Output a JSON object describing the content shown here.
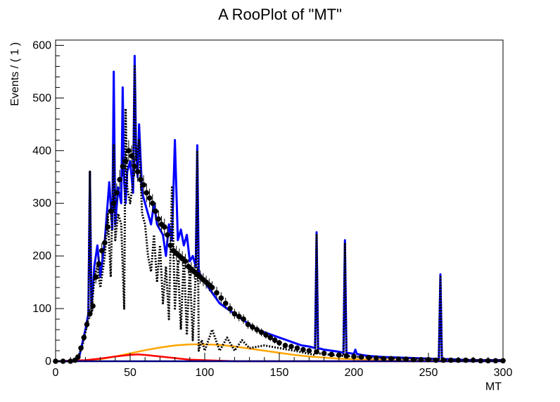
{
  "chart_data": {
    "type": "line",
    "title": "A RooPlot of \"MT\"",
    "xlabel": "MT",
    "ylabel": "Events / ( 1 )",
    "xlim": [
      0,
      300
    ],
    "ylim": [
      0,
      610
    ],
    "x_ticks": [
      0,
      50,
      100,
      150,
      200,
      250,
      300
    ],
    "y_ticks": [
      0,
      100,
      200,
      300,
      400,
      500,
      600
    ],
    "grid": false,
    "legend": "none",
    "data_points": {
      "x": [
        0,
        5,
        10,
        13,
        15,
        17,
        19,
        21,
        23,
        25,
        27,
        29,
        31,
        33,
        35,
        37,
        39,
        41,
        43,
        45,
        47,
        49,
        51,
        53,
        55,
        57,
        59,
        61,
        63,
        65,
        67,
        69,
        71,
        73,
        75,
        77,
        79,
        81,
        83,
        85,
        87,
        89,
        91,
        93,
        95,
        97,
        99,
        101,
        103,
        105,
        108,
        111,
        114,
        117,
        120,
        123,
        126,
        129,
        132,
        135,
        138,
        141,
        144,
        147,
        150,
        154,
        158,
        162,
        166,
        170,
        175,
        180,
        185,
        190,
        195,
        200,
        205,
        210,
        215,
        220,
        225,
        230,
        235,
        240,
        245,
        250,
        255,
        260,
        265,
        270,
        275,
        280,
        285,
        290,
        295,
        300
      ],
      "y": [
        0,
        0,
        0,
        2,
        8,
        25,
        45,
        70,
        90,
        105,
        160,
        185,
        210,
        225,
        255,
        285,
        300,
        320,
        345,
        370,
        380,
        400,
        390,
        370,
        360,
        345,
        335,
        320,
        310,
        300,
        285,
        270,
        260,
        255,
        240,
        220,
        210,
        205,
        200,
        195,
        190,
        180,
        175,
        170,
        165,
        160,
        155,
        150,
        145,
        140,
        130,
        120,
        110,
        100,
        90,
        85,
        80,
        70,
        65,
        60,
        55,
        50,
        45,
        40,
        35,
        30,
        28,
        25,
        22,
        20,
        18,
        15,
        13,
        12,
        10,
        9,
        8,
        7,
        6,
        5,
        5,
        4,
        4,
        3,
        3,
        3,
        2,
        2,
        2,
        2,
        2,
        2,
        1,
        1,
        1,
        1
      ]
    },
    "series": [
      {
        "color": "#0000ff",
        "x": [
          0,
          12,
          16,
          20,
          22,
          23,
          24,
          26,
          28,
          30,
          33,
          36,
          38,
          39,
          40,
          42,
          44,
          45,
          46,
          47,
          48,
          50,
          52,
          53,
          54,
          55,
          56,
          58,
          60,
          62,
          64,
          66,
          68,
          70,
          72,
          74,
          76,
          78,
          80,
          82,
          84,
          86,
          88,
          90,
          92,
          94,
          95,
          96,
          98,
          100,
          105,
          110,
          115,
          120,
          125,
          130,
          135,
          140,
          145,
          150,
          155,
          160,
          165,
          170,
          174,
          175,
          176,
          180,
          185,
          190,
          193,
          194,
          195,
          198,
          200,
          201,
          202,
          205,
          210,
          220,
          230,
          240,
          250,
          257,
          258,
          259,
          265,
          270,
          280,
          290,
          300
        ],
        "y": [
          0,
          0,
          10,
          60,
          90,
          360,
          100,
          180,
          220,
          160,
          230,
          340,
          250,
          550,
          260,
          330,
          300,
          520,
          340,
          300,
          360,
          380,
          320,
          580,
          390,
          350,
          450,
          320,
          300,
          280,
          260,
          300,
          260,
          250,
          240,
          200,
          260,
          230,
          420,
          230,
          250,
          220,
          240,
          190,
          200,
          180,
          410,
          170,
          160,
          150,
          130,
          110,
          100,
          90,
          80,
          70,
          60,
          55,
          50,
          45,
          40,
          35,
          30,
          28,
          25,
          245,
          25,
          22,
          20,
          18,
          16,
          230,
          16,
          15,
          14,
          22,
          14,
          12,
          10,
          8,
          7,
          6,
          5,
          4,
          165,
          4,
          4,
          3,
          2,
          2,
          2
        ]
      },
      {
        "color": "#ffa500",
        "x": [
          0,
          20,
          30,
          40,
          50,
          60,
          70,
          80,
          90,
          100,
          110,
          120,
          130,
          140,
          150,
          160,
          170,
          180,
          190,
          200,
          220,
          240,
          260,
          280,
          300
        ],
        "y": [
          0,
          1,
          4,
          9,
          15,
          21,
          26,
          30,
          32,
          32,
          31,
          28,
          24,
          20,
          16,
          12,
          9,
          7,
          5,
          4,
          2,
          1,
          1,
          0,
          0
        ]
      },
      {
        "color": "#ff0000",
        "x": [
          0,
          20,
          30,
          40,
          50,
          55,
          60,
          70,
          80,
          90,
          100,
          110,
          120,
          140,
          300
        ],
        "y": [
          0,
          2,
          5,
          9,
          12,
          13,
          12,
          9,
          6,
          3,
          2,
          1,
          0,
          0,
          0
        ]
      },
      {
        "color": "#000080",
        "x": [
          0,
          300
        ],
        "y": [
          0,
          0
        ]
      },
      {
        "color": "#000000",
        "x": [
          0,
          14,
          18,
          22,
          23,
          24,
          26,
          28,
          30,
          33,
          35,
          37,
          39,
          40,
          42,
          44,
          46,
          47,
          48,
          50,
          52,
          53,
          54,
          56,
          58,
          60,
          62,
          64,
          66,
          68,
          70,
          72,
          74,
          76,
          78,
          80,
          82,
          84,
          86,
          88,
          90,
          92,
          94,
          95,
          96,
          98,
          100,
          105,
          110,
          115,
          120,
          125,
          130,
          140,
          150,
          160,
          174,
          175,
          176,
          185,
          193,
          194,
          195,
          205,
          220,
          240,
          257,
          258,
          259,
          280,
          300
        ],
        "y": [
          0,
          0,
          30,
          80,
          360,
          90,
          160,
          180,
          140,
          200,
          280,
          160,
          410,
          230,
          280,
          260,
          100,
          480,
          330,
          300,
          340,
          560,
          380,
          420,
          280,
          260,
          200,
          170,
          240,
          150,
          220,
          110,
          180,
          80,
          330,
          100,
          190,
          60,
          200,
          50,
          180,
          40,
          170,
          400,
          20,
          40,
          20,
          60,
          20,
          45,
          20,
          40,
          25,
          30,
          25,
          20,
          12,
          240,
          15,
          12,
          10,
          225,
          10,
          8,
          6,
          5,
          4,
          160,
          3,
          2,
          2
        ]
      }
    ]
  }
}
